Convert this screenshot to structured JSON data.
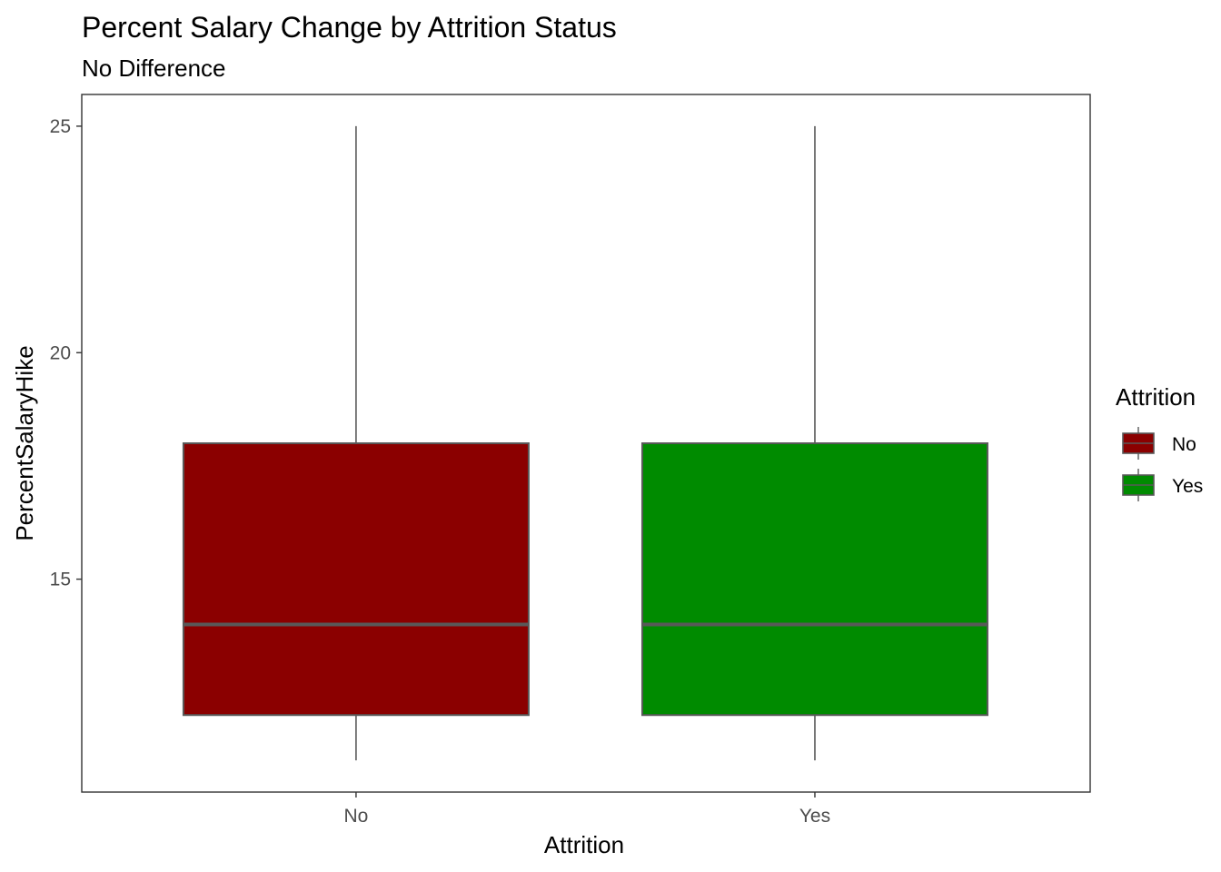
{
  "chart_data": {
    "type": "boxplot",
    "title": "Percent Salary Change by Attrition Status",
    "subtitle": "No Difference",
    "xlabel": "Attrition",
    "ylabel": "PercentSalaryHike",
    "categories": [
      "No",
      "Yes"
    ],
    "y_ticks": [
      15,
      20,
      25
    ],
    "ylim": [
      10.3,
      25.7
    ],
    "grid": false,
    "legend": {
      "title": "Attrition",
      "placement": "right",
      "entries": [
        "No",
        "Yes"
      ]
    },
    "boxes": [
      {
        "category": "No",
        "min": 11,
        "q1": 12,
        "median": 14,
        "q3": 18,
        "max": 25,
        "fill": "#8b0000"
      },
      {
        "category": "Yes",
        "min": 11,
        "q1": 12,
        "median": 14,
        "q3": 18,
        "max": 25,
        "fill": "#008b00"
      }
    ],
    "outline_color": "#595959",
    "axis_color": "#333333"
  }
}
